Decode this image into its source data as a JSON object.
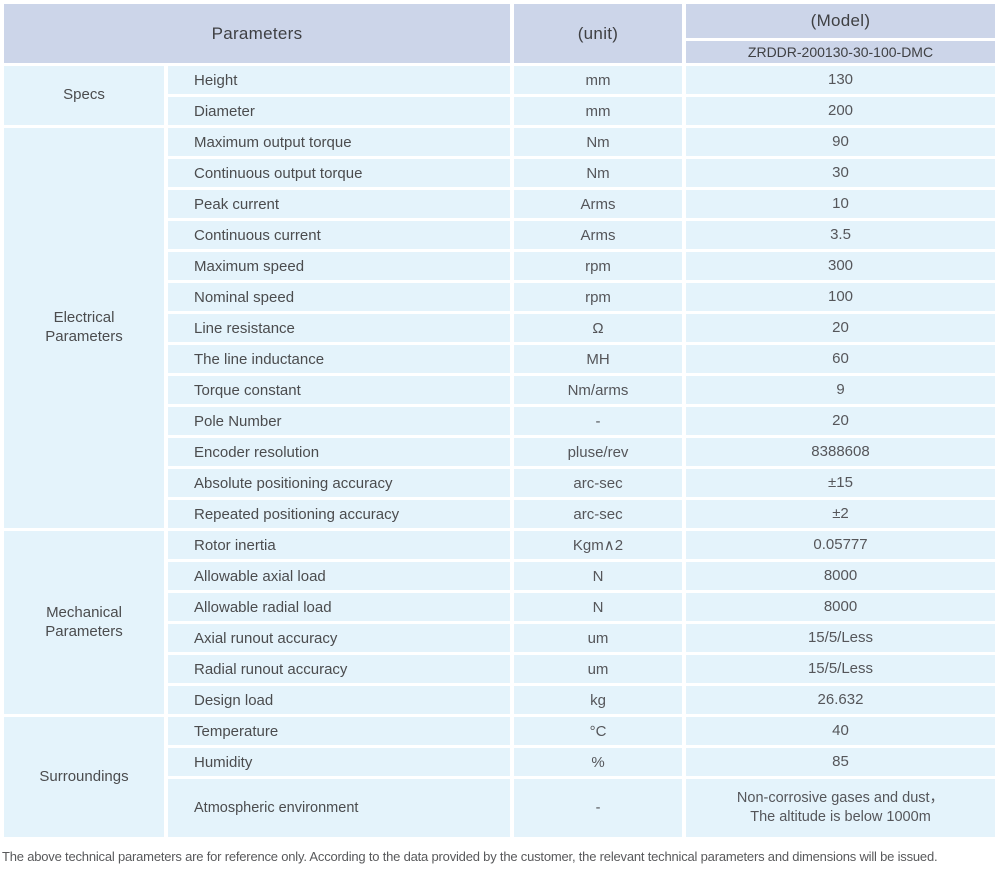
{
  "colors": {
    "header_bg": "#ccd5e9",
    "row_bg": "#e4f3fb",
    "text": "#4b4c4e",
    "footer_text": "#58595b"
  },
  "header": {
    "parameters_label": "Parameters",
    "unit_label": "(unit)",
    "model_label": "(Model)",
    "model_value": "ZRDDR-200130-30-100-DMC"
  },
  "groups": [
    {
      "category": "Specs",
      "rows": [
        {
          "name": "Height",
          "unit": "mm",
          "value": "130"
        },
        {
          "name": "Diameter",
          "unit": "mm",
          "value": "200"
        }
      ]
    },
    {
      "category": "Electrical Parameters",
      "rows": [
        {
          "name": "Maximum output torque",
          "unit": "Nm",
          "value": "90"
        },
        {
          "name": "Continuous output torque",
          "unit": "Nm",
          "value": "30"
        },
        {
          "name": "Peak current",
          "unit": "Arms",
          "value": "10"
        },
        {
          "name": "Continuous current",
          "unit": "Arms",
          "value": "3.5"
        },
        {
          "name": "Maximum speed",
          "unit": "rpm",
          "value": "300"
        },
        {
          "name": "Nominal speed",
          "unit": "rpm",
          "value": "100"
        },
        {
          "name": "Line resistance",
          "unit": "Ω",
          "value": "20"
        },
        {
          "name": "The line inductance",
          "unit": "MH",
          "value": "60"
        },
        {
          "name": "Torque constant",
          "unit": "Nm/arms",
          "value": "9"
        },
        {
          "name": "Pole Number",
          "unit": "-",
          "value": "20"
        },
        {
          "name": "Encoder resolution",
          "unit": "pluse/rev",
          "value": "8388608"
        },
        {
          "name": "Absolute positioning accuracy",
          "unit": "arc-sec",
          "value": "±15"
        },
        {
          "name": "Repeated positioning accuracy",
          "unit": "arc-sec",
          "value": "±2"
        }
      ]
    },
    {
      "category": "Mechanical Parameters",
      "rows": [
        {
          "name": "Rotor inertia",
          "unit": "Kgm∧2",
          "value": "0.05777"
        },
        {
          "name": "Allowable axial load",
          "unit": "N",
          "value": "8000"
        },
        {
          "name": "Allowable radial load",
          "unit": "N",
          "value": "8000"
        },
        {
          "name": "Axial runout accuracy",
          "unit": "um",
          "value": "15/5/Less"
        },
        {
          "name": "Radial runout accuracy",
          "unit": "um",
          "value": "15/5/Less"
        },
        {
          "name": "Design load",
          "unit": "kg",
          "value": "26.632"
        }
      ]
    },
    {
      "category": "Surroundings",
      "rows": [
        {
          "name": "Temperature",
          "unit": "°C",
          "value": "40"
        },
        {
          "name": "Humidity",
          "unit": "%",
          "value": "85"
        },
        {
          "name": "Atmospheric environment",
          "unit": "-",
          "value": "Non-corrosive gases and dust，\nThe altitude is below 1000m",
          "tall": true
        }
      ]
    }
  ],
  "footer_note": "The above technical parameters are for reference only. According to the data provided by the customer, the relevant technical parameters and dimensions will be issued."
}
